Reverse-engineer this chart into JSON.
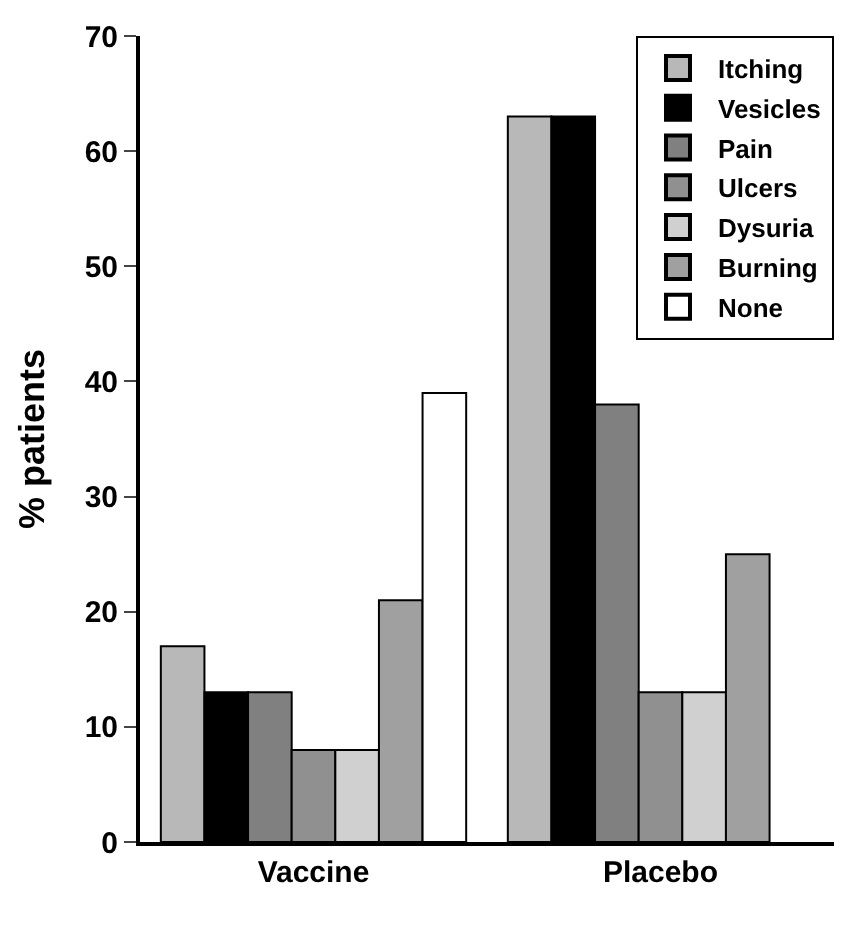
{
  "chart_data": {
    "type": "bar",
    "ylabel": "% patients",
    "categories": [
      "Vaccine",
      "Placebo"
    ],
    "series": [
      {
        "name": "Itching",
        "color": "#b8b8b8",
        "values": [
          17,
          63
        ]
      },
      {
        "name": "Vesicles",
        "color": "#000000",
        "values": [
          13,
          63
        ]
      },
      {
        "name": "Pain",
        "color": "#808080",
        "values": [
          13,
          38
        ]
      },
      {
        "name": "Ulcers",
        "color": "#909090",
        "values": [
          8,
          13
        ]
      },
      {
        "name": "Dysuria",
        "color": "#d0d0d0",
        "values": [
          8,
          13
        ]
      },
      {
        "name": "Burning",
        "color": "#a0a0a0",
        "values": [
          21,
          25
        ]
      },
      {
        "name": "None",
        "color": "#ffffff",
        "values": [
          39,
          null
        ]
      }
    ],
    "ylim": [
      0,
      70
    ],
    "yticks": [
      0,
      10,
      20,
      30,
      40,
      50,
      60,
      70
    ],
    "grid": false,
    "legend": "top right"
  }
}
